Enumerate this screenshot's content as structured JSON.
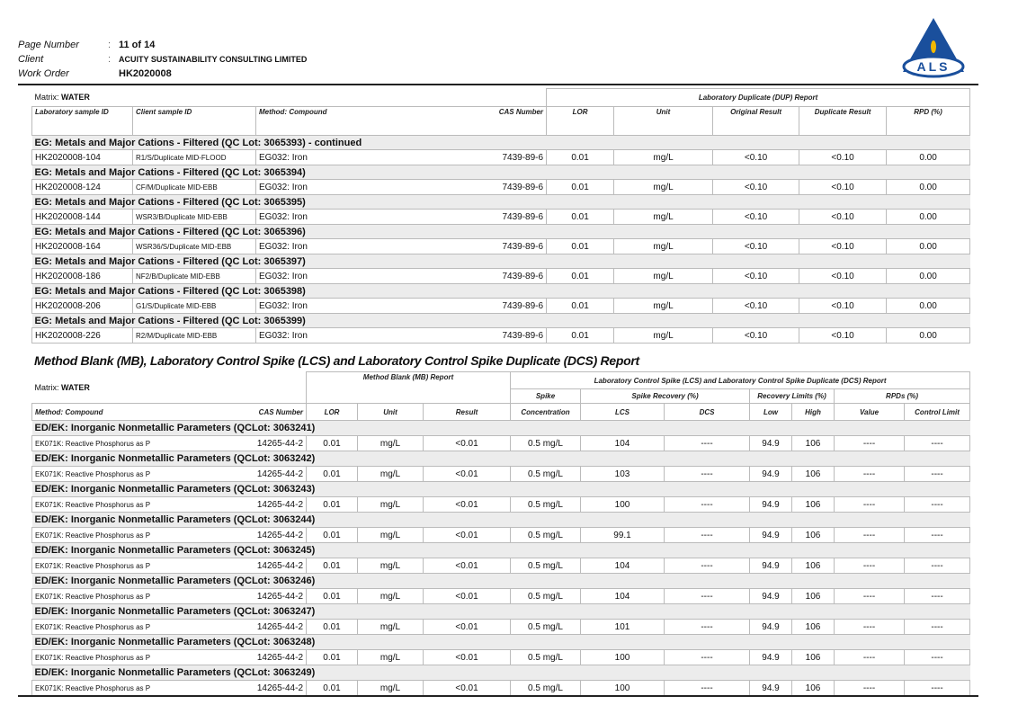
{
  "header": {
    "page_label": "Page Number",
    "page_value": "11 of 14",
    "client_label": "Client",
    "client_value": "ACUITY SUSTAINABILITY CONSULTING LIMITED",
    "wo_label": "Work Order",
    "wo_value": "HK2020008",
    "logo_text": "ALS",
    "brand_color": "#1a4f9c"
  },
  "dup": {
    "matrix_label": "Matrix:",
    "matrix_value": "WATER",
    "report_title": "Laboratory Duplicate (DUP) Report",
    "columns": [
      "Laboratory sample ID",
      "Client sample ID",
      "Method: Compound",
      "CAS Number",
      "LOR",
      "Unit",
      "Original Result",
      "Duplicate Result",
      "RPD (%)"
    ],
    "groups": [
      {
        "title": "EG: Metals and Major Cations - Filtered  (QC Lot: 3065393)  - continued",
        "row": [
          "HK2020008-104",
          "R1/S/Duplicate MID-FLOOD",
          "EG032: Iron",
          "7439-89-6",
          "0.01",
          "mg/L",
          "<0.10",
          "<0.10",
          "0.00"
        ]
      },
      {
        "title": "EG: Metals and Major Cations - Filtered  (QC Lot: 3065394)",
        "row": [
          "HK2020008-124",
          "CF/M/Duplicate MID-EBB",
          "EG032: Iron",
          "7439-89-6",
          "0.01",
          "mg/L",
          "<0.10",
          "<0.10",
          "0.00"
        ]
      },
      {
        "title": "EG: Metals and Major Cations - Filtered  (QC Lot: 3065395)",
        "row": [
          "HK2020008-144",
          "WSR3/B/Duplicate MID-EBB",
          "EG032: Iron",
          "7439-89-6",
          "0.01",
          "mg/L",
          "<0.10",
          "<0.10",
          "0.00"
        ]
      },
      {
        "title": "EG: Metals and Major Cations - Filtered  (QC Lot: 3065396)",
        "row": [
          "HK2020008-164",
          "WSR36/S/Duplicate MID-EBB",
          "EG032: Iron",
          "7439-89-6",
          "0.01",
          "mg/L",
          "<0.10",
          "<0.10",
          "0.00"
        ]
      },
      {
        "title": "EG: Metals and Major Cations - Filtered  (QC Lot: 3065397)",
        "row": [
          "HK2020008-186",
          "NF2/B/Duplicate MID-EBB",
          "EG032: Iron",
          "7439-89-6",
          "0.01",
          "mg/L",
          "<0.10",
          "<0.10",
          "0.00"
        ]
      },
      {
        "title": "EG: Metals and Major Cations - Filtered  (QC Lot: 3065398)",
        "row": [
          "HK2020008-206",
          "G1/S/Duplicate MID-EBB",
          "EG032: Iron",
          "7439-89-6",
          "0.01",
          "mg/L",
          "<0.10",
          "<0.10",
          "0.00"
        ]
      },
      {
        "title": "EG: Metals and Major Cations - Filtered  (QC Lot: 3065399)",
        "row": [
          "HK2020008-226",
          "R2/M/Duplicate MID-EBB",
          "EG032: Iron",
          "7439-89-6",
          "0.01",
          "mg/L",
          "<0.10",
          "<0.10",
          "0.00"
        ]
      }
    ]
  },
  "mb": {
    "section_title": "Method Blank (MB), Laboratory Control Spike (LCS) and Laboratory Control Spike Duplicate (DCS) Report",
    "matrix_label": "Matrix:",
    "matrix_value": "WATER",
    "mb_title": "Method Blank (MB) Report",
    "lcs_title": "Laboratory Control Spike (LCS) and Laboratory Control Spike Duplicate (DCS) Report",
    "spike": "Spike",
    "spike_recovery": "Spike Recovery (%)",
    "recovery_limits": "Recovery Limits (%)",
    "rpds": "RPDs (%)",
    "columns": [
      "Method: Compound",
      "CAS Number",
      "LOR",
      "Unit",
      "Result",
      "Concentration",
      "LCS",
      "DCS",
      "Low",
      "High",
      "Value",
      "Control Limit"
    ],
    "groups": [
      {
        "title": "ED/EK: Inorganic Nonmetallic Parameters  (QCLot: 3063241)",
        "row": [
          "EK071K: Reactive Phosphorus as P",
          "14265-44-2",
          "0.01",
          "mg/L",
          "<0.01",
          "0.5 mg/L",
          "104",
          "----",
          "94.9",
          "106",
          "----",
          "----"
        ]
      },
      {
        "title": "ED/EK: Inorganic Nonmetallic Parameters  (QCLot: 3063242)",
        "row": [
          "EK071K: Reactive Phosphorus as P",
          "14265-44-2",
          "0.01",
          "mg/L",
          "<0.01",
          "0.5 mg/L",
          "103",
          "----",
          "94.9",
          "106",
          "----",
          "----"
        ]
      },
      {
        "title": "ED/EK: Inorganic Nonmetallic Parameters  (QCLot: 3063243)",
        "row": [
          "EK071K: Reactive Phosphorus as P",
          "14265-44-2",
          "0.01",
          "mg/L",
          "<0.01",
          "0.5 mg/L",
          "100",
          "----",
          "94.9",
          "106",
          "----",
          "----"
        ]
      },
      {
        "title": "ED/EK: Inorganic Nonmetallic Parameters  (QCLot: 3063244)",
        "row": [
          "EK071K: Reactive Phosphorus as P",
          "14265-44-2",
          "0.01",
          "mg/L",
          "<0.01",
          "0.5 mg/L",
          "99.1",
          "----",
          "94.9",
          "106",
          "----",
          "----"
        ]
      },
      {
        "title": "ED/EK: Inorganic Nonmetallic Parameters  (QCLot: 3063245)",
        "row": [
          "EK071K: Reactive Phosphorus as P",
          "14265-44-2",
          "0.01",
          "mg/L",
          "<0.01",
          "0.5 mg/L",
          "104",
          "----",
          "94.9",
          "106",
          "----",
          "----"
        ]
      },
      {
        "title": "ED/EK: Inorganic Nonmetallic Parameters  (QCLot: 3063246)",
        "row": [
          "EK071K: Reactive Phosphorus as P",
          "14265-44-2",
          "0.01",
          "mg/L",
          "<0.01",
          "0.5 mg/L",
          "104",
          "----",
          "94.9",
          "106",
          "----",
          "----"
        ]
      },
      {
        "title": "ED/EK: Inorganic Nonmetallic Parameters  (QCLot: 3063247)",
        "row": [
          "EK071K: Reactive Phosphorus as P",
          "14265-44-2",
          "0.01",
          "mg/L",
          "<0.01",
          "0.5 mg/L",
          "101",
          "----",
          "94.9",
          "106",
          "----",
          "----"
        ]
      },
      {
        "title": "ED/EK: Inorganic Nonmetallic Parameters  (QCLot: 3063248)",
        "row": [
          "EK071K: Reactive Phosphorus as P",
          "14265-44-2",
          "0.01",
          "mg/L",
          "<0.01",
          "0.5 mg/L",
          "100",
          "----",
          "94.9",
          "106",
          "----",
          "----"
        ]
      },
      {
        "title": "ED/EK: Inorganic Nonmetallic Parameters  (QCLot: 3063249)",
        "row": [
          "EK071K: Reactive Phosphorus as P",
          "14265-44-2",
          "0.01",
          "mg/L",
          "<0.01",
          "0.5 mg/L",
          "100",
          "----",
          "94.9",
          "106",
          "----",
          "----"
        ]
      }
    ]
  }
}
